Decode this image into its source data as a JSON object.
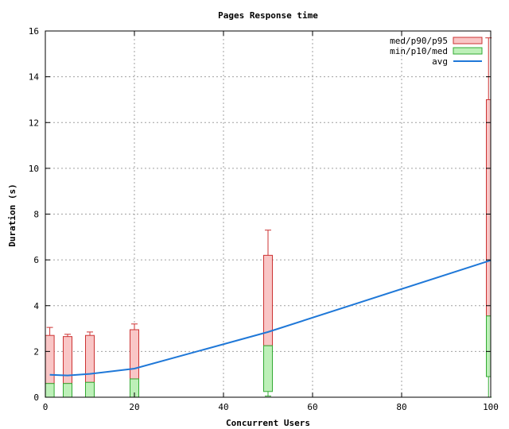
{
  "chart_data": {
    "type": "box",
    "title": "Pages Response time",
    "xlabel": "Concurrent Users",
    "ylabel": "Duration (s)",
    "xlim": [
      0,
      100
    ],
    "ylim": [
      0,
      16
    ],
    "xticks": [
      0,
      20,
      40,
      60,
      80,
      100
    ],
    "yticks": [
      0,
      2,
      4,
      6,
      8,
      10,
      12,
      14,
      16
    ],
    "grid": true,
    "legend_position": "top-right",
    "legend": [
      {
        "label": "med/p90/p95",
        "kind": "box",
        "fill": "#f9c6c6",
        "stroke": "#cc3333"
      },
      {
        "label": "min/p10/med",
        "kind": "box",
        "fill": "#bdf0b8",
        "stroke": "#33aa33"
      },
      {
        "label": "avg",
        "kind": "line",
        "stroke": "#1f78d8"
      }
    ],
    "boxes": [
      {
        "x": 1,
        "min": 0.0,
        "p10": 0.0,
        "med": 0.6,
        "p90": 2.7,
        "p95": 3.05
      },
      {
        "x": 5,
        "min": 0.0,
        "p10": 0.0,
        "med": 0.6,
        "p90": 2.65,
        "p95": 2.75
      },
      {
        "x": 10,
        "min": 0.0,
        "p10": 0.0,
        "med": 0.65,
        "p90": 2.7,
        "p95": 2.85
      },
      {
        "x": 20,
        "min": 0.0,
        "p10": 0.0,
        "med": 0.8,
        "p90": 2.95,
        "p95": 3.2
      },
      {
        "x": 50,
        "min": 0.05,
        "p10": 0.25,
        "med": 2.25,
        "p90": 6.2,
        "p95": 7.3
      },
      {
        "x": 100,
        "min": 0.0,
        "p10": 0.9,
        "med": 3.55,
        "p90": 13.0,
        "p95": 15.7
      }
    ],
    "avg": {
      "x": [
        1,
        5,
        10,
        20,
        50,
        100
      ],
      "y": [
        0.98,
        0.95,
        1.02,
        1.25,
        2.85,
        5.98
      ]
    },
    "colors": {
      "upper_fill": "#f9c6c6",
      "upper_stroke": "#cc3333",
      "lower_fill": "#bdf0b8",
      "lower_stroke": "#33aa33",
      "avg_line": "#1f78d8",
      "grid": "#a0a0a0"
    }
  }
}
